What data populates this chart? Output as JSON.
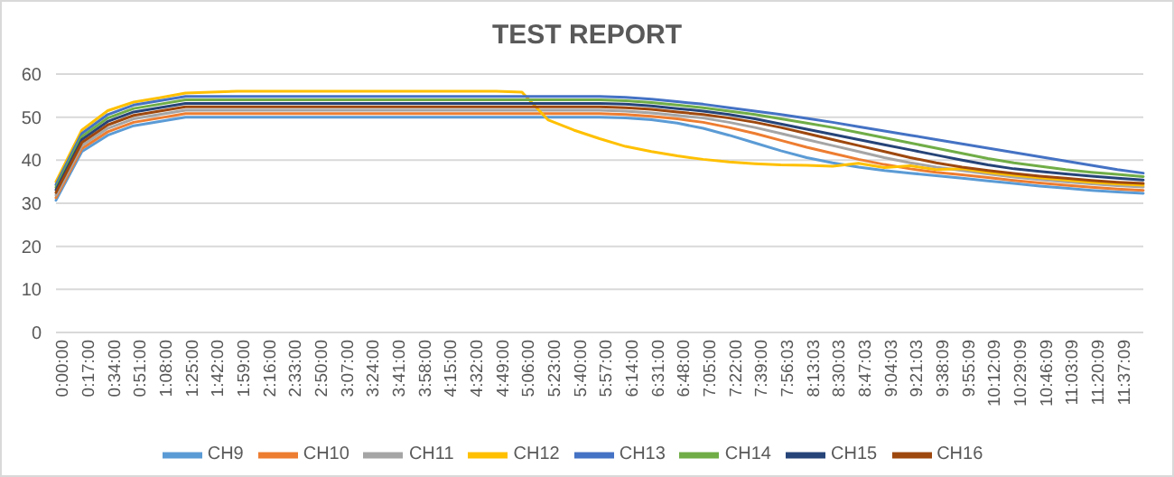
{
  "chart_data": {
    "type": "line",
    "title": "TEST REPORT",
    "categories": [
      "0:00:00",
      "0:17:00",
      "0:34:00",
      "0:51:00",
      "1:08:00",
      "1:25:00",
      "1:42:00",
      "1:59:00",
      "2:16:00",
      "2:33:00",
      "2:50:00",
      "3:07:00",
      "3:24:00",
      "3:41:00",
      "3:58:00",
      "4:15:00",
      "4:32:00",
      "4:49:00",
      "5:06:00",
      "5:23:00",
      "5:40:00",
      "5:57:00",
      "6:14:00",
      "6:31:00",
      "6:48:00",
      "7:05:00",
      "7:22:00",
      "7:39:00",
      "7:56:03",
      "8:13:03",
      "8:30:03",
      "8:47:03",
      "9:04:03",
      "9:21:03",
      "9:38:09",
      "9:55:09",
      "10:12:09",
      "10:29:09",
      "10:46:09",
      "11:03:09",
      "11:20:09",
      "11:37:09",
      null
    ],
    "series": [
      {
        "name": "CH9",
        "color": "#5b9bd5",
        "values": [
          30.7,
          42,
          45.8,
          48,
          49,
          50,
          50,
          50,
          50,
          50,
          50,
          50,
          50,
          50,
          50,
          50,
          50,
          50,
          50,
          50,
          50,
          50,
          49.8,
          49.4,
          48.6,
          47.4,
          45.8,
          44,
          42.2,
          40.6,
          39.4,
          38.4,
          37.6,
          37,
          36.4,
          35.8,
          35.2,
          34.6,
          34,
          33.5,
          33,
          32.6,
          32.3
        ]
      },
      {
        "name": "CH10",
        "color": "#ed7d31",
        "values": [
          31.3,
          42.7,
          46.6,
          48.8,
          49.8,
          50.8,
          50.8,
          50.8,
          50.8,
          50.8,
          50.8,
          50.8,
          50.8,
          50.8,
          50.8,
          50.8,
          50.8,
          50.8,
          50.8,
          50.8,
          50.8,
          50.8,
          50.6,
          50.2,
          49.6,
          48.8,
          47.6,
          46.2,
          44.6,
          43,
          41.6,
          40.2,
          39,
          38,
          37.2,
          36.6,
          36,
          35.3,
          34.7,
          34.2,
          33.7,
          33.3,
          33
        ]
      },
      {
        "name": "CH11",
        "color": "#a5a5a5",
        "values": [
          31.9,
          43.4,
          47.4,
          49.6,
          50.6,
          51.6,
          51.6,
          51.6,
          51.6,
          51.6,
          51.6,
          51.6,
          51.6,
          51.6,
          51.6,
          51.6,
          51.6,
          51.6,
          51.6,
          51.6,
          51.6,
          51.6,
          51.4,
          51,
          50.4,
          49.8,
          48.8,
          47.6,
          46.2,
          44.8,
          43.4,
          42,
          40.6,
          39.4,
          38.4,
          37.6,
          36.8,
          36.1,
          35.5,
          35,
          34.5,
          34.1,
          33.8
        ]
      },
      {
        "name": "CH12",
        "color": "#ffc000",
        "values": [
          35,
          47,
          51.5,
          53.5,
          54.5,
          55.6,
          55.8,
          56,
          56,
          56,
          56,
          56,
          56,
          56,
          56,
          56,
          56,
          56,
          55.8,
          49.4,
          47,
          45,
          43.2,
          42,
          41,
          40.2,
          39.6,
          39.2,
          38.9,
          38.8,
          38.6,
          39.3,
          38.3,
          38.7,
          37.8,
          38,
          37.2,
          36.5,
          35.9,
          35.4,
          34.9,
          34.5,
          34.2
        ]
      },
      {
        "name": "CH13",
        "color": "#4472c4",
        "values": [
          34.3,
          46.2,
          50.6,
          52.8,
          53.8,
          54.8,
          54.8,
          54.8,
          54.8,
          54.8,
          54.8,
          54.8,
          54.8,
          54.8,
          54.8,
          54.8,
          54.8,
          54.8,
          54.8,
          54.8,
          54.8,
          54.8,
          54.6,
          54.2,
          53.6,
          53,
          52.2,
          51.4,
          50.6,
          49.7,
          48.8,
          47.8,
          46.8,
          45.8,
          44.8,
          43.8,
          42.8,
          41.8,
          40.8,
          39.8,
          38.8,
          37.8,
          37
        ]
      },
      {
        "name": "CH14",
        "color": "#70ad47",
        "values": [
          33.7,
          45.5,
          49.8,
          52,
          53,
          54,
          54,
          54,
          54,
          54,
          54,
          54,
          54,
          54,
          54,
          54,
          54,
          54,
          54,
          54,
          54,
          54,
          53.8,
          53.4,
          52.8,
          52.2,
          51.4,
          50.6,
          49.6,
          48.6,
          47.6,
          46.4,
          45.2,
          44,
          42.8,
          41.6,
          40.4,
          39.4,
          38.6,
          37.8,
          37.2,
          36.7,
          36.2
        ]
      },
      {
        "name": "CH15",
        "color": "#264478",
        "values": [
          33.1,
          44.8,
          49,
          51.2,
          52.2,
          53.2,
          53.2,
          53.2,
          53.2,
          53.2,
          53.2,
          53.2,
          53.2,
          53.2,
          53.2,
          53.2,
          53.2,
          53.2,
          53.2,
          53.2,
          53.2,
          53.2,
          53,
          52.6,
          52,
          51.4,
          50.6,
          49.6,
          48.4,
          47.2,
          46,
          44.8,
          43.6,
          42.4,
          41.2,
          40,
          38.9,
          38,
          37.4,
          36.8,
          36.3,
          35.8,
          35.4
        ]
      },
      {
        "name": "CH16",
        "color": "#9e480e",
        "values": [
          32.5,
          44.1,
          48.2,
          50.4,
          51.4,
          52.4,
          52.4,
          52.4,
          52.4,
          52.4,
          52.4,
          52.4,
          52.4,
          52.4,
          52.4,
          52.4,
          52.4,
          52.4,
          52.4,
          52.4,
          52.4,
          52.4,
          52.2,
          51.8,
          51.2,
          50.6,
          49.8,
          48.8,
          47.6,
          46.2,
          44.8,
          43.4,
          42,
          40.6,
          39.4,
          38.4,
          37.6,
          36.9,
          36.3,
          35.8,
          35.3,
          34.9,
          34.6
        ]
      }
    ],
    "ylim": [
      0,
      60
    ],
    "yticks": [
      0,
      10,
      20,
      30,
      40,
      50,
      60
    ],
    "grid": "y",
    "legend": "bottom",
    "marker": "none",
    "line_style": "solid"
  }
}
